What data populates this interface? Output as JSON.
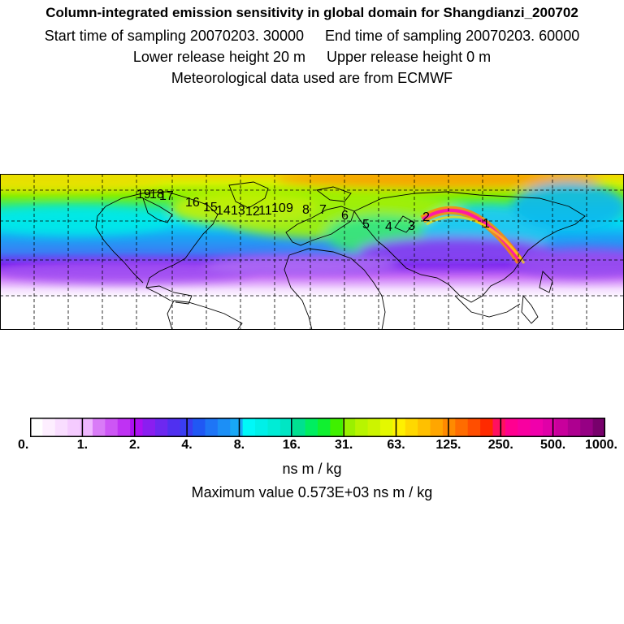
{
  "header": {
    "title": "Column-integrated emission sensitivity in global domain for Shangdianzi_200702",
    "start_time": "Start time of sampling 20070203. 30000",
    "end_time": "End time of sampling 20070203. 60000",
    "lower_height": "Lower release height   20 m",
    "upper_height": "Upper release height    0 m",
    "met_data": "Meteorological data used are from ECMWF"
  },
  "map": {
    "colors": {
      "arctic": "#f2c400",
      "polar_band": "#d8ef00",
      "mid_green": "#34e870",
      "cyan": "#00e8f0",
      "blue": "#1ea4f2",
      "violet": "#7a1fee",
      "lavender": "#ece0ff",
      "plume_red": "#f03000",
      "plume_magenta": "#ff1aa4",
      "coast": "#000000",
      "grid": "#000000"
    },
    "trajectory_labels": [
      "19",
      "18",
      "17",
      "16",
      "15",
      "14",
      "13",
      "12",
      "11",
      "10",
      "9",
      "8",
      "7",
      "6",
      "5",
      "4",
      "3",
      "2",
      "1"
    ]
  },
  "colorbar": {
    "colors": [
      "#ffffff",
      "#fdeeff",
      "#f9ddff",
      "#f5cbff",
      "#efb6ff",
      "#d97bf7",
      "#cd56f5",
      "#bf32f3",
      "#ad10f2",
      "#8a1ef0",
      "#6d28f0",
      "#5030f0",
      "#3a3df2",
      "#2058f4",
      "#1e75f6",
      "#1c8ff6",
      "#18a8f6",
      "#00f8f8",
      "#00f0e8",
      "#00ecd6",
      "#00e6c4",
      "#00e090",
      "#00ee60",
      "#10f030",
      "#40f000",
      "#9af000",
      "#b8f400",
      "#ccf400",
      "#e4f800",
      "#fff000",
      "#ffd800",
      "#ffc000",
      "#ffa600",
      "#ff8a00",
      "#ff6c00",
      "#ff4e00",
      "#ff2a00",
      "#ff1060",
      "#ff0090",
      "#f800a0",
      "#f000ab",
      "#e000a8",
      "#c8009c",
      "#ae0090",
      "#960084",
      "#78006c"
    ],
    "ticks": [
      "0.",
      "1.",
      "2.",
      "4.",
      "8.",
      "16.",
      "31.",
      "63.",
      "125.",
      "250.",
      "500.",
      "1000."
    ],
    "unit": "ns m / kg",
    "max_value": "Maximum value  0.573E+03 ns m / kg"
  }
}
